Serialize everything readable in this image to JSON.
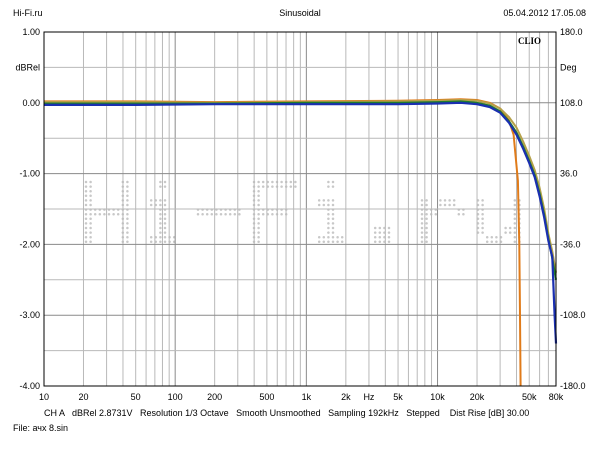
{
  "header": {
    "site": "Hi-Fi.ru",
    "title": "Sinusoidal",
    "timestamp": "05.04.2012 17.05.08",
    "brand": "CLIO"
  },
  "footer": {
    "info": "CH A   dBRel 2.8731V   Resolution 1/3 Octave   Smooth Unsmoothed   Sampling 192kHz   Stepped    Dist Rise [dB] 30.00",
    "file": "File: ачх 8.sin"
  },
  "watermark": "Hi-Fi.ru",
  "chart_data": {
    "type": "line",
    "title": "Sinusoidal",
    "xlabel": "Hz",
    "ylabel": "dBRel",
    "y2label": "Deg",
    "x_scale": "log",
    "xlim": [
      10,
      80000
    ],
    "ylim": [
      -4.0,
      1.0
    ],
    "y2lim": [
      -180.0,
      180.0
    ],
    "grid": true,
    "x_ticks": [
      "10",
      "20",
      "50",
      "100",
      "200",
      "500",
      "1k",
      "2k",
      "Hz",
      "5k",
      "10k",
      "20k",
      "50k",
      "80k"
    ],
    "y_ticks": [
      "1.00",
      "0.00",
      "-1.00",
      "-2.00",
      "-3.00",
      "-4.00"
    ],
    "y2_ticks": [
      "180.0",
      "108.0",
      "36.0",
      "-36.0",
      "-108.0",
      "-180.0"
    ],
    "series": [
      {
        "color": "#e07b1a",
        "x": [
          10,
          50,
          200,
          1000,
          5000,
          10000,
          15000,
          20000,
          25000,
          30000,
          35000,
          38000,
          41000,
          42000,
          42500,
          43000
        ],
        "y": [
          0.02,
          0.02,
          0.01,
          0.02,
          0.03,
          0.04,
          0.05,
          0.04,
          0.0,
          -0.08,
          -0.25,
          -0.45,
          -1.1,
          -2.0,
          -3.0,
          -4.0
        ]
      },
      {
        "color": "#b5a14a",
        "x": [
          10,
          50,
          200,
          1000,
          5000,
          10000,
          15000,
          20000,
          25000,
          30000,
          35000,
          40000,
          45000,
          50000,
          55000,
          60000,
          65000,
          70000,
          75000,
          80000
        ],
        "y": [
          0.01,
          0.01,
          0.0,
          0.01,
          0.02,
          0.03,
          0.04,
          0.03,
          -0.01,
          -0.08,
          -0.2,
          -0.35,
          -0.55,
          -0.75,
          -0.95,
          -1.2,
          -1.5,
          -1.85,
          -2.1,
          -2.4
        ]
      },
      {
        "color": "#1f7a2e",
        "x": [
          10,
          50,
          200,
          1000,
          5000,
          10000,
          15000,
          20000,
          25000,
          30000,
          35000,
          40000,
          45000,
          50000,
          55000,
          60000,
          65000,
          70000,
          75000,
          80000
        ],
        "y": [
          -0.01,
          -0.01,
          -0.01,
          0.0,
          0.0,
          0.01,
          0.02,
          0.0,
          -0.04,
          -0.12,
          -0.26,
          -0.42,
          -0.62,
          -0.82,
          -1.02,
          -1.28,
          -1.58,
          -1.92,
          -2.2,
          -2.5
        ]
      },
      {
        "color": "#1a2fb0",
        "x": [
          10,
          50,
          200,
          1000,
          5000,
          10000,
          15000,
          20000,
          25000,
          30000,
          35000,
          40000,
          45000,
          50000,
          55000,
          60000,
          65000,
          70000,
          75000,
          78000,
          80000
        ],
        "y": [
          -0.03,
          -0.03,
          -0.02,
          -0.02,
          -0.02,
          -0.01,
          0.0,
          -0.02,
          -0.06,
          -0.14,
          -0.28,
          -0.45,
          -0.65,
          -0.85,
          -1.05,
          -1.32,
          -1.62,
          -1.95,
          -2.18,
          -3.0,
          -3.4
        ]
      }
    ]
  }
}
